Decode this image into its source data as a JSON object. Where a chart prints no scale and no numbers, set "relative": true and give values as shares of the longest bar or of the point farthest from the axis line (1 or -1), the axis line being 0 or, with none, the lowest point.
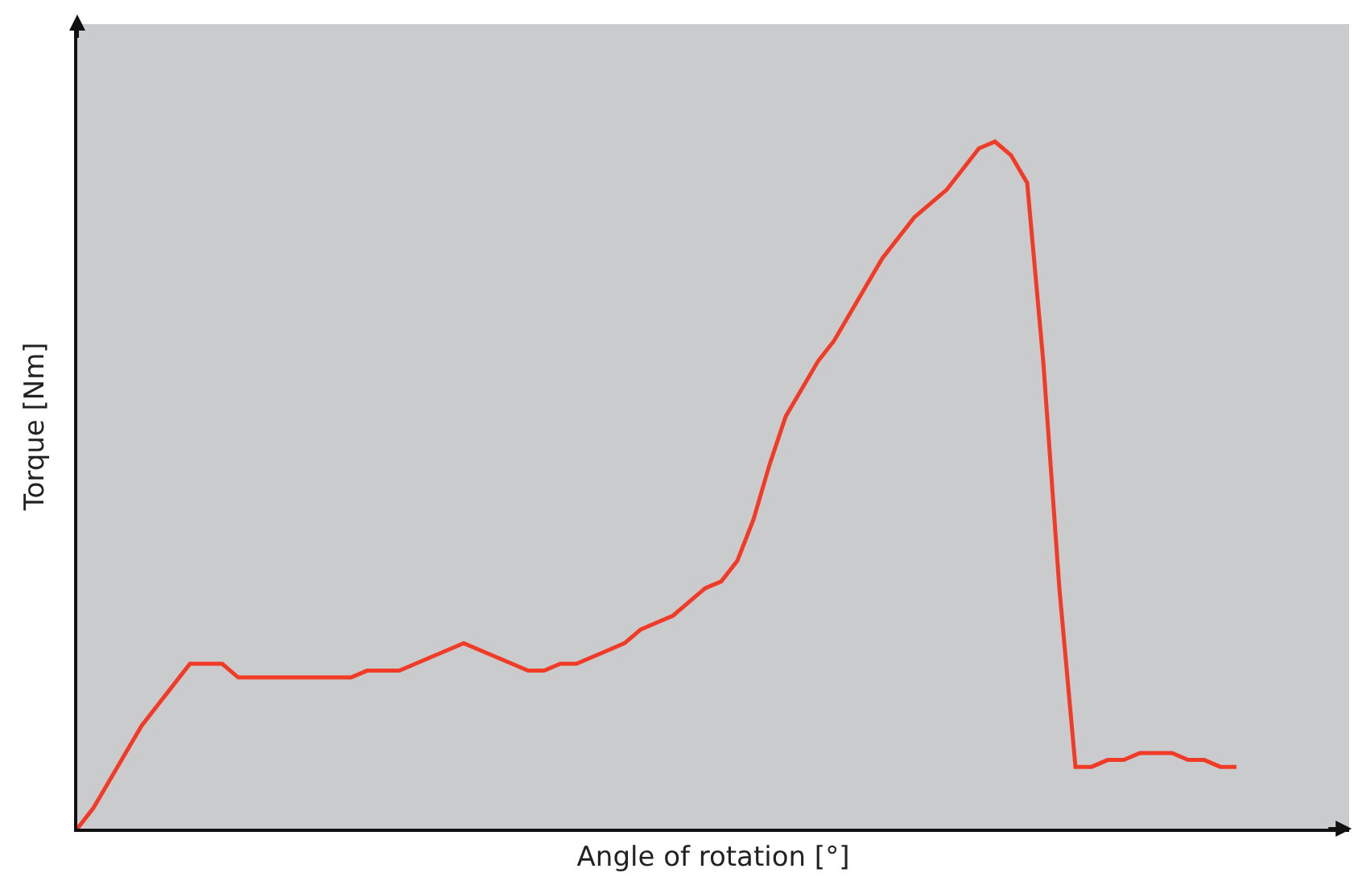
{
  "chart_data": {
    "type": "line",
    "xlabel": "Angle of rotation [°]",
    "ylabel": "Torque [Nm]",
    "relative": true,
    "tick_labels": false,
    "grid": false,
    "marker": "none",
    "line_style": "solid",
    "categories": [
      null,
      null,
      null,
      null,
      null,
      null,
      null,
      null,
      null,
      null,
      null,
      null,
      null,
      null,
      null,
      null,
      null,
      null,
      null,
      null,
      null,
      null,
      null,
      null,
      null,
      null,
      null,
      null,
      null,
      null,
      null,
      null,
      null,
      null,
      null,
      null,
      null,
      null,
      null,
      null,
      null,
      null,
      null,
      null,
      null,
      null,
      null,
      null,
      null,
      null,
      null,
      null,
      null,
      null,
      null,
      null,
      null,
      null,
      null,
      null,
      null,
      null,
      null,
      null,
      null,
      null,
      null,
      null,
      null,
      null,
      null,
      null,
      null,
      null,
      null,
      null,
      null,
      null,
      null,
      null
    ],
    "series": [
      {
        "color": "#f23b26",
        "values": [
          0,
          0.03,
          0.07,
          0.11,
          0.15,
          0.18,
          0.21,
          0.24,
          0.24,
          0.24,
          0.22,
          0.22,
          0.22,
          0.22,
          0.22,
          0.22,
          0.22,
          0.22,
          0.23,
          0.23,
          0.23,
          0.24,
          0.25,
          0.26,
          0.27,
          0.26,
          0.25,
          0.24,
          0.23,
          0.23,
          0.24,
          0.24,
          0.25,
          0.26,
          0.27,
          0.29,
          0.3,
          0.31,
          0.33,
          0.35,
          0.36,
          0.39,
          0.45,
          0.53,
          0.6,
          0.64,
          0.68,
          0.71,
          0.75,
          0.79,
          0.83,
          0.86,
          0.89,
          0.91,
          0.93,
          0.96,
          0.99,
          1,
          0.98,
          0.94,
          0.68,
          0.35,
          0.09,
          0.09,
          0.1,
          0.1,
          0.11,
          0.11,
          0.11,
          0.1,
          0.1,
          0.09,
          0.09,
          null,
          null,
          null,
          null,
          null,
          null,
          null
        ]
      }
    ]
  }
}
